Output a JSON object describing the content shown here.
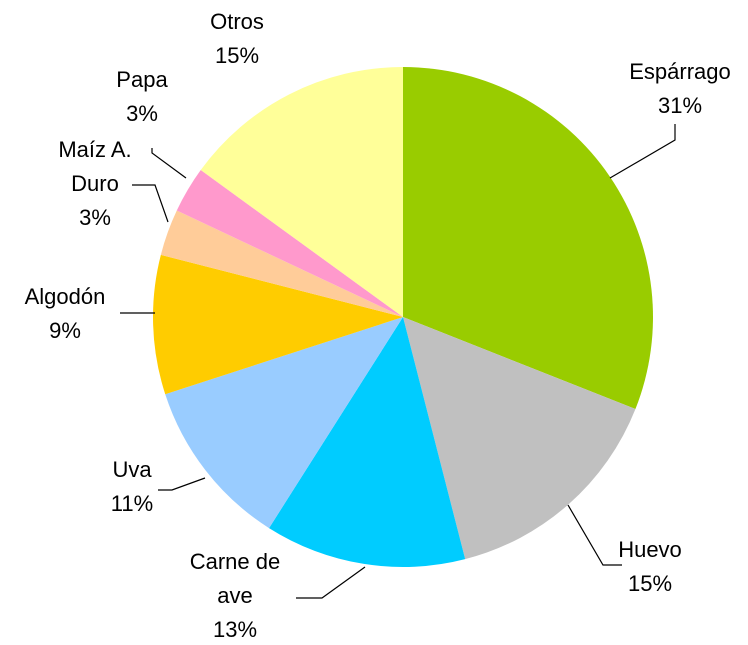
{
  "chart_data": {
    "type": "pie",
    "categories": [
      "Espárrago",
      "Huevo",
      "Carne de ave",
      "Uva",
      "Algodón",
      "Maíz A. Duro",
      "Papa",
      "Otros"
    ],
    "values": [
      31,
      15,
      13,
      11,
      9,
      3,
      3,
      15
    ],
    "value_labels": [
      "31%",
      "15%",
      "13%",
      "11%",
      "9%",
      "3%",
      "3%",
      "15%"
    ],
    "colors": [
      "#99cc00",
      "#c0c0c0",
      "#00ccff",
      "#99ccff",
      "#ffcc00",
      "#ffcc99",
      "#ff99cc",
      "#ffff99"
    ]
  }
}
